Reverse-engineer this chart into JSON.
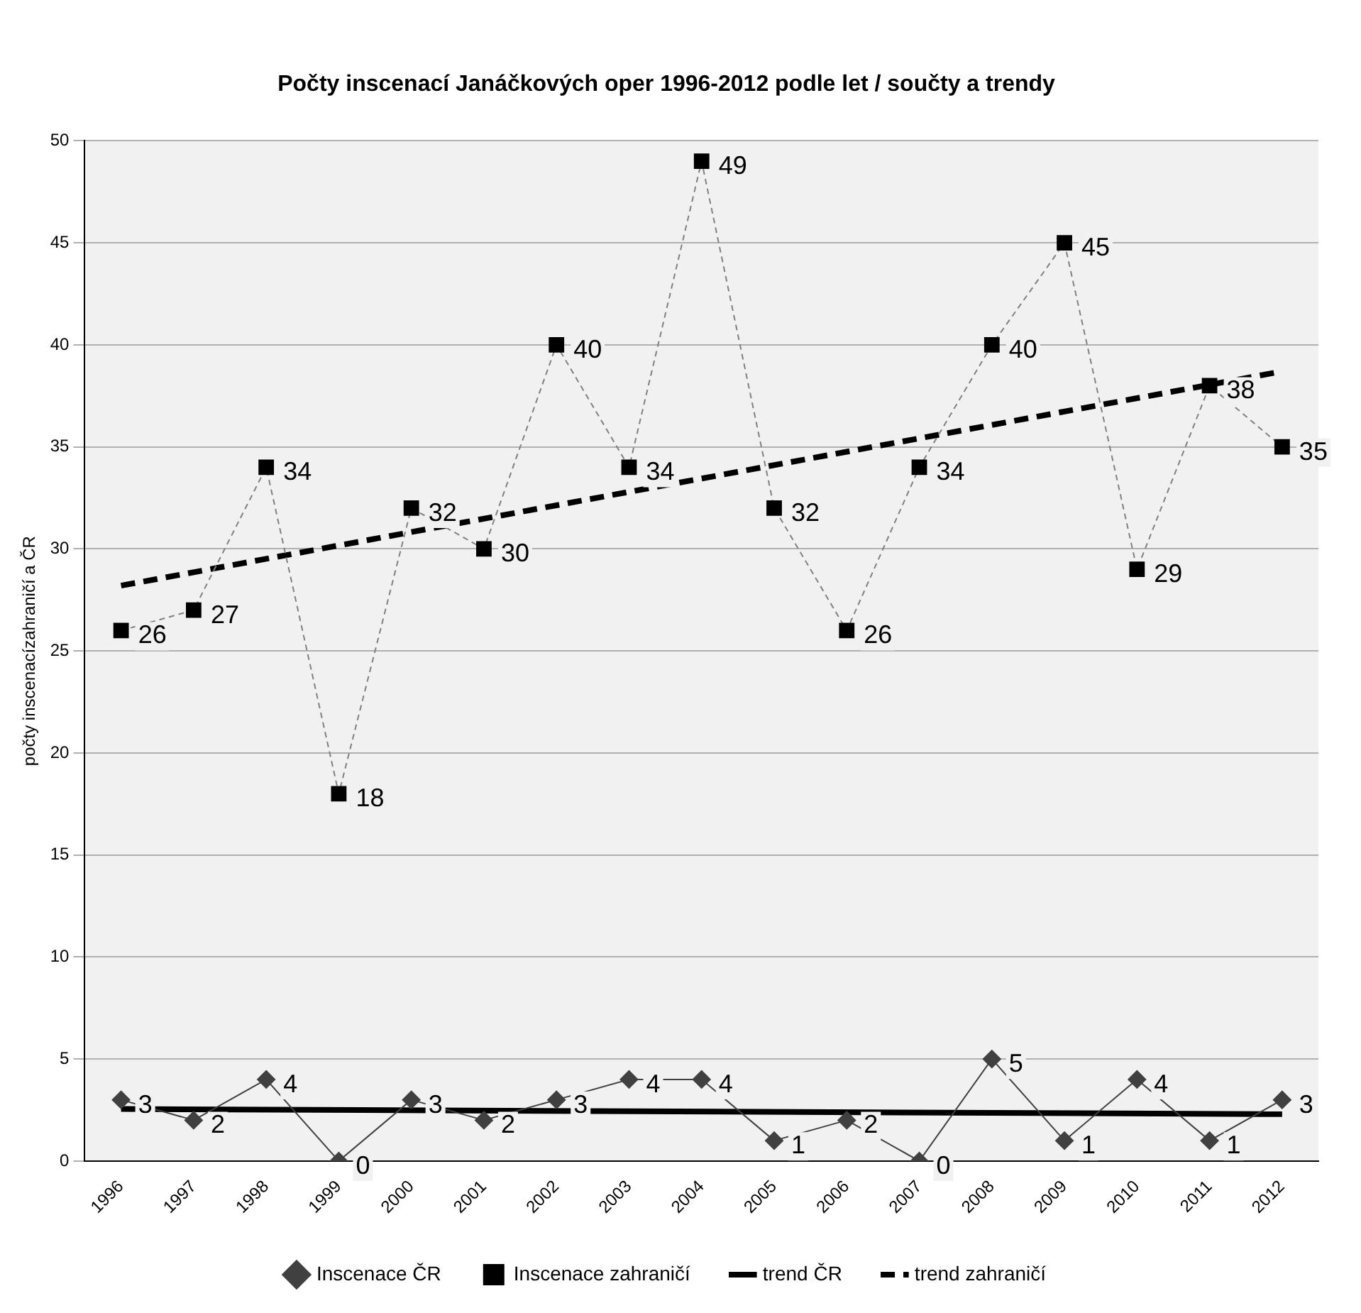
{
  "chart_data": {
    "type": "line",
    "title": "Počty inscenací Janáčkových oper 1996-2012 podle let / součty a trendy",
    "ylabel": "počty inscenacízahraničí a ČR",
    "categories": [
      "1996",
      "1997",
      "1998",
      "1999",
      "2000",
      "2001",
      "2002",
      "2003",
      "2004",
      "2005",
      "2006",
      "2007",
      "2008",
      "2009",
      "2010",
      "2011",
      "2012"
    ],
    "series": [
      {
        "name": "Inscenace ČR",
        "color": "#404040",
        "marker": "diamond",
        "line_style": "solid",
        "data_labels": true,
        "values": [
          3,
          2,
          4,
          0,
          3,
          2,
          3,
          4,
          4,
          1,
          2,
          0,
          5,
          1,
          4,
          1,
          3
        ]
      },
      {
        "name": "Inscenace zahraničí",
        "color": "#000000",
        "marker": "square",
        "line_style": "dashed",
        "data_labels": true,
        "values": [
          26,
          27,
          34,
          18,
          32,
          30,
          40,
          34,
          49,
          32,
          26,
          34,
          40,
          45,
          29,
          38,
          35
        ]
      },
      {
        "name": "trend ČR",
        "type": "line",
        "color": "#000000",
        "marker": "none",
        "line_style": "solid",
        "values": [
          2.55,
          null,
          null,
          null,
          null,
          null,
          null,
          null,
          null,
          null,
          null,
          null,
          null,
          null,
          null,
          null,
          2.3
        ]
      },
      {
        "name": "trend zahraničí",
        "type": "line",
        "color": "#000000",
        "marker": "none",
        "line_style": "dashed",
        "values": [
          28.2,
          null,
          null,
          null,
          null,
          null,
          null,
          null,
          null,
          null,
          null,
          null,
          null,
          null,
          null,
          null,
          38.7
        ]
      }
    ],
    "ylim": [
      0,
      50
    ],
    "yticks": [
      0,
      5,
      10,
      15,
      20,
      25,
      30,
      35,
      40,
      45,
      50
    ],
    "grid": "y",
    "legend": "bottom"
  }
}
